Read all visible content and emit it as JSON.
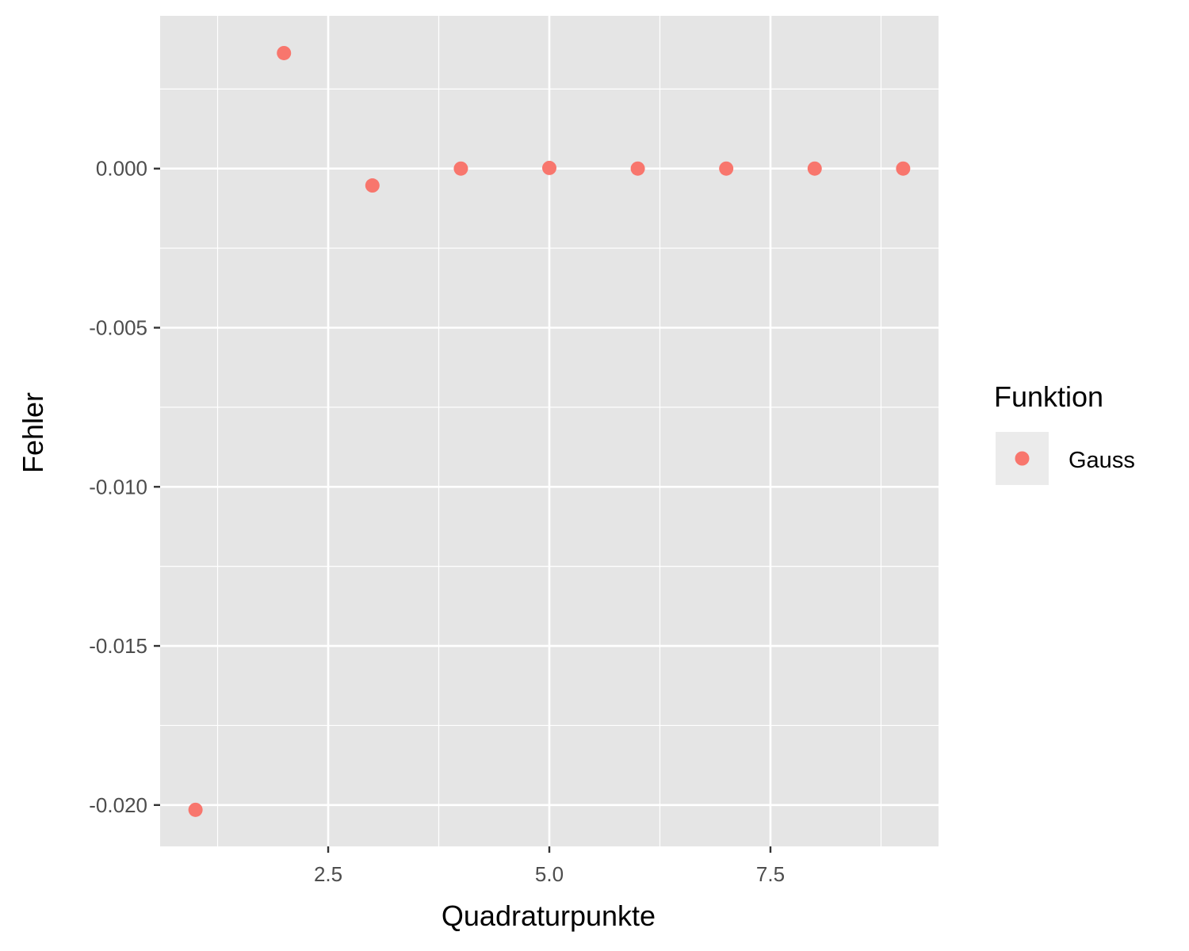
{
  "chart_data": {
    "type": "scatter",
    "xlabel": "Quadraturpunkte",
    "ylabel": "Fehler",
    "xlim": [
      0.6,
      9.4
    ],
    "ylim": [
      -0.0213,
      0.0048
    ],
    "x_ticks": [
      2.5,
      5.0,
      7.5
    ],
    "x_tick_labels": [
      "2.5",
      "5.0",
      "7.5"
    ],
    "y_ticks": [
      0.0,
      -0.005,
      -0.01,
      -0.015,
      -0.02
    ],
    "y_tick_labels": [
      "0.000",
      "-0.005",
      "-0.010",
      "-0.015",
      "-0.020"
    ],
    "grid": true,
    "legend": {
      "title": "Funktion",
      "position": "right"
    },
    "series": [
      {
        "name": "Gauss",
        "color": "#F8766D",
        "points": [
          {
            "x": 1,
            "y": -0.02015
          },
          {
            "x": 2,
            "y": 0.00363
          },
          {
            "x": 3,
            "y": -0.00053
          },
          {
            "x": 4,
            "y": 0.0
          },
          {
            "x": 5,
            "y": 2e-05
          },
          {
            "x": 6,
            "y": 0.0
          },
          {
            "x": 7,
            "y": 0.0
          },
          {
            "x": 8,
            "y": 0.0
          },
          {
            "x": 9,
            "y": 0.0
          }
        ]
      }
    ],
    "panel_background": "#E5E5E5",
    "grid_color": "#FFFFFF",
    "legend_key_background": "#EBEBEB"
  }
}
